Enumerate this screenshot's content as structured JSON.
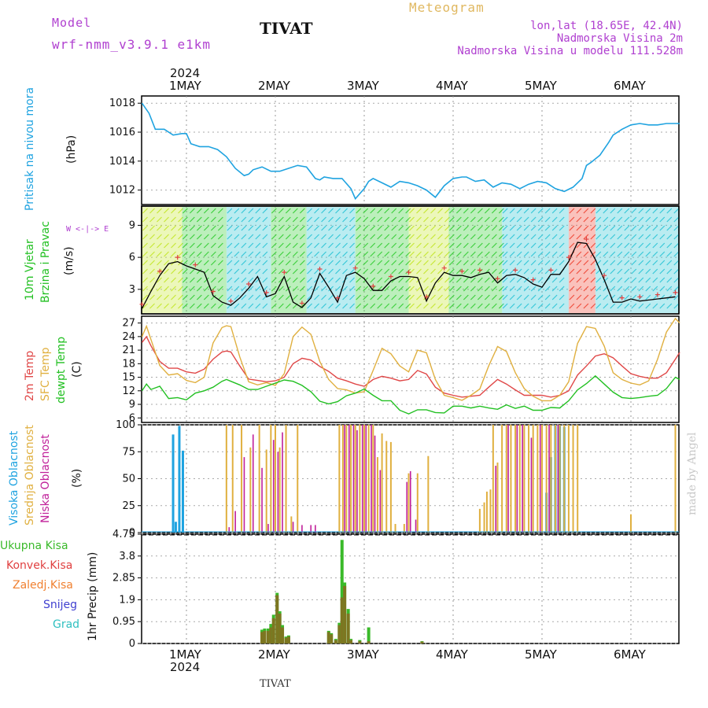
{
  "header": {
    "model_label": "Model",
    "model_name": "wrf-nmm_v3.9.1 e1km",
    "title": "TIVAT",
    "meteogram": "Meteogram",
    "lonlat": "lon,lat (18.65E, 42.4N)",
    "altitude": "Nadmorska Visina 2m",
    "model_altitude": "Nadmorska Visina u modelu 111.528m",
    "footer_title": "TIVAT",
    "credit": "made by Angel"
  },
  "dates": {
    "year": "2024",
    "days": [
      "1MAY",
      "2MAY",
      "3MAY",
      "4MAY",
      "5MAY",
      "6MAY"
    ]
  },
  "panels": {
    "pressure": {
      "label": "Pritisak na nivou mora",
      "unit": "(hPa)"
    },
    "wind": {
      "label1": "10m Vjetar",
      "label2": "Brzina i Pravac",
      "unit": "(m/s)",
      "compass": "W <-|-> E"
    },
    "temp": {
      "label1": "2m Temp",
      "label2": "SFC Temp",
      "label3": "dewpt Temp",
      "unit": "(C)"
    },
    "cloud": {
      "label1": "Visoka Oblacnost",
      "label2": "Srednja Oblacnost",
      "label3": "Niska Oblacnost",
      "unit": "(%)"
    },
    "precip": {
      "unit": "1hr Precip (mm)",
      "legend": [
        "Ukupna Kisa",
        "Konvek.Kisa",
        "Zaledj.Kisa",
        "Snijeg",
        "Grad"
      ]
    }
  },
  "colors": {
    "pressure": "#1fa3e0",
    "temp2m": "#e04848",
    "sfc": "#e0b040",
    "dewpt": "#22c022",
    "cloud_high": "#1fa3e0",
    "cloud_mid": "#e0b040",
    "cloud_low": "#c0209a",
    "precip_total": "#3aba2a",
    "precip_conv": "#e04040",
    "precip_frz": "#f08030",
    "snow": "#4040d0",
    "hail": "#30c0c0",
    "purple": "#b040d0"
  },
  "chart_data": [
    {
      "type": "line",
      "name": "pressure",
      "ylim": [
        1011,
        1018.5
      ],
      "yticks": [
        1012,
        1014,
        1016,
        1018
      ],
      "xlim": [
        -0.5,
        5.55
      ],
      "x": [
        -0.5,
        -0.42,
        -0.35,
        -0.25,
        -0.15,
        -0.05,
        0.0,
        0.05,
        0.15,
        0.25,
        0.35,
        0.45,
        0.55,
        0.65,
        0.7,
        0.75,
        0.85,
        0.95,
        1.05,
        1.15,
        1.25,
        1.35,
        1.45,
        1.5,
        1.55,
        1.65,
        1.75,
        1.85,
        1.9,
        2.0,
        2.05,
        2.1,
        2.2,
        2.3,
        2.4,
        2.5,
        2.6,
        2.7,
        2.8,
        2.9,
        3.0,
        3.1,
        3.15,
        3.25,
        3.35,
        3.45,
        3.55,
        3.65,
        3.75,
        3.85,
        3.95,
        4.05,
        4.15,
        4.25,
        4.35,
        4.45,
        4.5,
        4.55,
        4.65,
        4.75,
        4.8,
        4.9,
        5.0,
        5.1,
        5.2,
        5.3,
        5.4,
        5.5,
        5.55
      ],
      "values": [
        1018,
        1017.3,
        1016.2,
        1016.2,
        1015.8,
        1015.9,
        1015.9,
        1015.2,
        1015,
        1015,
        1014.8,
        1014.3,
        1013.5,
        1013,
        1013.1,
        1013.4,
        1013.6,
        1013.3,
        1013.3,
        1013.5,
        1013.7,
        1013.6,
        1012.8,
        1012.7,
        1012.9,
        1012.8,
        1012.8,
        1012.1,
        1011.4,
        1012.1,
        1012.6,
        1012.8,
        1012.5,
        1012.2,
        1012.6,
        1012.5,
        1012.3,
        1012,
        1011.5,
        1012.3,
        1012.8,
        1012.9,
        1012.9,
        1012.6,
        1012.7,
        1012.2,
        1012.5,
        1012.4,
        1012.1,
        1012.4,
        1012.6,
        1012.5,
        1012.1,
        1011.9,
        1012.2,
        1012.8,
        1013.7,
        1013.9,
        1014.4,
        1015.3,
        1015.8,
        1016.2,
        1016.5,
        1016.6,
        1016.5,
        1016.5,
        1016.6,
        1016.6,
        1016.6
      ],
      "ylabel": "(hPa)"
    },
    {
      "type": "line",
      "name": "wind_speed",
      "ylim": [
        0.7,
        10.8
      ],
      "yticks": [
        3,
        6,
        9
      ],
      "xlim": [
        -0.5,
        5.55
      ],
      "x": [
        -0.5,
        -0.4,
        -0.3,
        -0.2,
        -0.1,
        0.0,
        0.1,
        0.2,
        0.3,
        0.4,
        0.5,
        0.6,
        0.7,
        0.8,
        0.9,
        1.0,
        1.1,
        1.2,
        1.3,
        1.4,
        1.5,
        1.6,
        1.7,
        1.8,
        1.9,
        2.0,
        2.1,
        2.2,
        2.3,
        2.4,
        2.5,
        2.6,
        2.7,
        2.8,
        2.9,
        3.0,
        3.1,
        3.2,
        3.3,
        3.4,
        3.5,
        3.6,
        3.7,
        3.8,
        3.9,
        4.0,
        4.1,
        4.2,
        4.3,
        4.4,
        4.5,
        4.6,
        4.7,
        4.8,
        4.9,
        5.0,
        5.1,
        5.2,
        5.3,
        5.4,
        5.5
      ],
      "values": [
        1.2,
        2.8,
        4.3,
        5.4,
        5.6,
        5.2,
        4.9,
        4.6,
        2.4,
        1.8,
        1.5,
        2.2,
        3.1,
        4.2,
        2.3,
        2.6,
        4.2,
        1.8,
        1.3,
        2.2,
        4.5,
        3.2,
        1.8,
        4.3,
        4.6,
        4.0,
        2.9,
        2.9,
        3.8,
        4.2,
        4.2,
        4.1,
        1.9,
        3.6,
        4.6,
        4.3,
        4.3,
        4.1,
        4.4,
        4.6,
        3.6,
        4.3,
        4.4,
        4.1,
        3.5,
        3.2,
        4.4,
        4.4,
        5.6,
        7.4,
        7.3,
        5.8,
        3.9,
        1.8,
        1.8,
        2.1,
        1.9,
        2.0,
        2.1,
        2.2,
        2.3
      ],
      "ylabel": "(m/s)"
    },
    {
      "type": "line",
      "name": "temperature",
      "ylim": [
        5,
        28.5
      ],
      "yticks": [
        6,
        9,
        12,
        15,
        18,
        21,
        24,
        27
      ],
      "xlim": [
        -0.5,
        5.55
      ],
      "x": [
        -0.5,
        -0.45,
        -0.4,
        -0.3,
        -0.2,
        -0.1,
        0.0,
        0.1,
        0.2,
        0.3,
        0.4,
        0.45,
        0.5,
        0.6,
        0.7,
        0.8,
        0.9,
        1.0,
        1.1,
        1.2,
        1.3,
        1.4,
        1.5,
        1.6,
        1.7,
        1.8,
        1.9,
        2.0,
        2.1,
        2.2,
        2.3,
        2.4,
        2.5,
        2.6,
        2.7,
        2.8,
        2.9,
        3.0,
        3.1,
        3.2,
        3.3,
        3.4,
        3.5,
        3.6,
        3.7,
        3.8,
        3.9,
        4.0,
        4.1,
        4.2,
        4.3,
        4.4,
        4.5,
        4.6,
        4.7,
        4.8,
        4.9,
        5.0,
        5.1,
        5.2,
        5.3,
        5.4,
        5.5,
        5.55
      ],
      "series": [
        {
          "name": "2m Temp",
          "values": [
            22.7,
            24.0,
            22,
            18.5,
            17,
            17,
            16.2,
            15.9,
            16.8,
            19,
            20.6,
            20.8,
            20.6,
            17.5,
            14.6,
            14.3,
            14,
            14.2,
            15,
            18,
            19.2,
            18.8,
            17.4,
            16.3,
            14.8,
            14.2,
            13.5,
            13,
            14.5,
            15.2,
            14.8,
            14.2,
            14.5,
            16.5,
            15.7,
            12.8,
            11.5,
            11,
            10.6,
            10.8,
            11,
            12.8,
            14.5,
            13.5,
            12.2,
            11,
            11,
            11,
            10.6,
            11,
            12,
            15.5,
            17.5,
            19.7,
            20.2,
            19.3,
            17.5,
            15.8,
            15.2,
            14.8,
            14.8,
            16,
            19,
            20.5
          ]
        },
        {
          "name": "SFC Temp",
          "values": [
            24,
            26.3,
            23.4,
            17.6,
            15.5,
            15.8,
            14.3,
            13.8,
            15,
            22.6,
            26,
            26.4,
            26.2,
            19.5,
            14,
            13.3,
            13.8,
            13.2,
            15.8,
            24,
            26.1,
            24.5,
            18.5,
            14.5,
            12.5,
            12.2,
            11.5,
            11.8,
            16.5,
            21.4,
            20.2,
            17.5,
            16.2,
            21,
            20.4,
            14.5,
            11,
            10.5,
            9.9,
            11,
            12.4,
            17.5,
            21.8,
            20.7,
            16,
            12.5,
            10.8,
            9.8,
            9.8,
            11,
            14,
            22.5,
            26.2,
            25.8,
            21.9,
            16,
            14.5,
            13.7,
            13.3,
            14.2,
            19,
            25,
            28,
            27
          ]
        },
        {
          "name": "dewpt Temp",
          "values": [
            12,
            13.5,
            12.3,
            13,
            10.3,
            10.5,
            10,
            11.5,
            12,
            12.8,
            14.1,
            14.5,
            14.1,
            13.3,
            12.3,
            12.3,
            13,
            13.7,
            14.4,
            14.1,
            13.2,
            11.8,
            9.7,
            9.1,
            9.6,
            10.9,
            11.5,
            12.4,
            11,
            9.8,
            9.8,
            7.7,
            6.9,
            7.8,
            7.8,
            7.2,
            7.1,
            8.6,
            8.6,
            8.2,
            8.6,
            8.2,
            7.9,
            8.9,
            8.1,
            8.6,
            7.7,
            7.7,
            8.3,
            8.2,
            9.8,
            12.2,
            13.6,
            15.3,
            13.5,
            11.7,
            10.5,
            10.3,
            10.5,
            10.8,
            11,
            12.5,
            15,
            14.5
          ]
        }
      ],
      "ylabel": "(C)"
    },
    {
      "type": "bar",
      "name": "cloud_cover",
      "ylim": [
        0,
        100
      ],
      "yticks": [
        0,
        25,
        50,
        75,
        100
      ],
      "xlim": [
        -0.5,
        5.55
      ],
      "series": [
        {
          "name": "Visoka Oblacnost",
          "x": [
            -0.15,
            -0.12,
            -0.08,
            -0.04,
            4.05,
            4.1,
            4.15,
            4.2,
            4.25
          ],
          "values": [
            91,
            10,
            99,
            76,
            37,
            70,
            100,
            99,
            98
          ]
        },
        {
          "name": "Srednja Oblacnost",
          "x": [
            0.45,
            0.52,
            0.62,
            0.72,
            0.82,
            0.9,
            0.95,
            1.0,
            1.05,
            1.12,
            1.18,
            1.25,
            1.72,
            1.76,
            1.8,
            1.85,
            1.9,
            1.95,
            2.0,
            2.05,
            2.1,
            2.15,
            2.2,
            2.25,
            2.3,
            2.35,
            2.45,
            2.5,
            2.6,
            2.72,
            3.3,
            3.35,
            3.38,
            3.42,
            3.45,
            3.5,
            3.55,
            3.6,
            3.65,
            3.7,
            3.75,
            3.8,
            3.85,
            3.9,
            3.95,
            4.0,
            4.05,
            4.1,
            4.15,
            4.2,
            4.25,
            4.3,
            4.35,
            4.4,
            5.0,
            5.5
          ],
          "values": [
            100,
            100,
            100,
            79,
            100,
            77,
            100,
            100,
            79,
            100,
            15,
            100,
            100,
            100,
            100,
            100,
            100,
            100,
            100,
            100,
            100,
            70,
            92,
            85,
            84,
            8,
            8,
            55,
            55,
            71,
            22,
            28,
            38,
            40,
            100,
            65,
            100,
            100,
            100,
            100,
            100,
            100,
            100,
            100,
            100,
            100,
            100,
            100,
            100,
            100,
            100,
            100,
            100,
            100,
            17,
            100
          ]
        },
        {
          "name": "Niska Oblacnost",
          "x": [
            0.48,
            0.55,
            0.65,
            0.75,
            0.85,
            0.92,
            0.98,
            1.03,
            1.08,
            1.2,
            1.3,
            1.4,
            1.45,
            1.78,
            1.83,
            1.88,
            1.92,
            1.98,
            2.02,
            2.08,
            2.12,
            2.18,
            2.48,
            2.52,
            2.58,
            3.48,
            3.62,
            3.72,
            3.78,
            3.88,
            3.98,
            4.08,
            4.18
          ],
          "values": [
            5,
            20,
            70,
            91,
            60,
            8,
            86,
            75,
            93,
            10,
            7,
            7,
            7,
            100,
            100,
            100,
            95,
            100,
            100,
            100,
            90,
            58,
            47,
            57,
            12,
            62,
            100,
            100,
            100,
            88,
            100,
            100,
            100
          ]
        }
      ],
      "ylabel": "(%)"
    },
    {
      "type": "bar",
      "name": "precipitation",
      "ylim": [
        0,
        4.75
      ],
      "yticks": [
        0,
        0.95,
        1.9,
        2.85,
        3.8,
        4.75
      ],
      "xlim": [
        -0.5,
        5.55
      ],
      "series": [
        {
          "name": "Ukupna Kisa",
          "x": [
            0.85,
            0.88,
            0.92,
            0.95,
            0.98,
            1.02,
            1.05,
            1.08,
            1.12,
            1.15,
            1.6,
            1.63,
            1.68,
            1.72,
            1.75,
            1.78,
            1.82,
            1.85,
            1.95,
            2.05,
            2.65
          ],
          "values": [
            0.6,
            0.65,
            0.65,
            0.85,
            1.25,
            2.2,
            1.4,
            0.8,
            0.3,
            0.35,
            0.55,
            0.45,
            0.2,
            0.9,
            4.5,
            2.65,
            1.5,
            0.2,
            0.15,
            0.7,
            0.1
          ],
          "convective": [
            0.5,
            0.55,
            0.55,
            0.7,
            1.1,
            2.1,
            1.3,
            0.7,
            0.25,
            0.3,
            0.5,
            0.4,
            0.15,
            0.8,
            2.0,
            2.5,
            1.3,
            0.15,
            0.1,
            0.1,
            0.08
          ]
        }
      ],
      "ylabel": "1hr Precip (mm)"
    }
  ]
}
